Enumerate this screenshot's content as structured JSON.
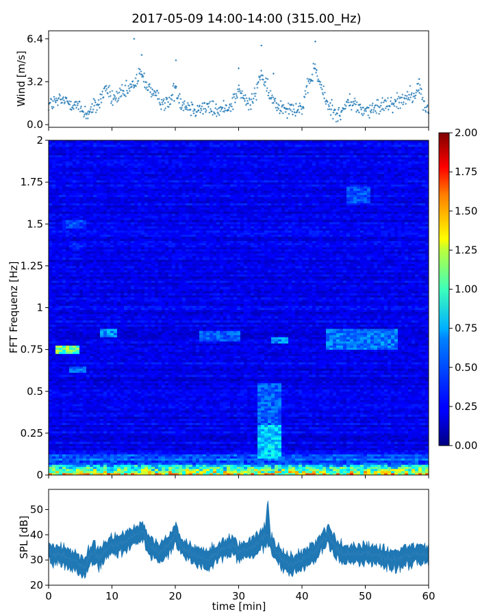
{
  "title": "2017-05-09 14:00-14:00 (315.00_Hz)",
  "chart_data": [
    {
      "type": "scatter",
      "panel": "wind",
      "ylabel": "Wind [m/s]",
      "xlim": [
        0,
        60
      ],
      "ylim": [
        -0.2,
        7.0
      ],
      "yticks": [
        0.0,
        3.2,
        6.4
      ],
      "ytick_labels": [
        "0.0",
        "3.2",
        "6.4"
      ],
      "marker": "+",
      "color": "#1f77b4",
      "profile": [
        [
          0,
          1.5
        ],
        [
          2,
          1.8
        ],
        [
          4,
          1.6
        ],
        [
          6,
          0.8
        ],
        [
          8,
          1.6
        ],
        [
          9,
          2.8
        ],
        [
          10,
          1.9
        ],
        [
          12,
          2.3
        ],
        [
          13.5,
          3.0
        ],
        [
          14.5,
          3.8
        ],
        [
          15.5,
          3.0
        ],
        [
          17,
          2.0
        ],
        [
          19,
          1.5
        ],
        [
          20,
          2.8
        ],
        [
          21,
          1.6
        ],
        [
          23,
          1.2
        ],
        [
          25,
          1.3
        ],
        [
          27,
          1.0
        ],
        [
          29,
          1.6
        ],
        [
          30,
          2.6
        ],
        [
          31,
          1.8
        ],
        [
          32,
          1.5
        ],
        [
          33,
          2.8
        ],
        [
          33.5,
          4.0
        ],
        [
          34.5,
          2.5
        ],
        [
          36,
          1.4
        ],
        [
          38,
          1.3
        ],
        [
          40,
          1.2
        ],
        [
          41,
          2.8
        ],
        [
          42,
          4.3
        ],
        [
          43,
          2.8
        ],
        [
          44,
          1.5
        ],
        [
          46,
          0.7
        ],
        [
          47.5,
          1.8
        ],
        [
          49,
          1.2
        ],
        [
          51,
          1.0
        ],
        [
          53,
          1.6
        ],
        [
          55,
          1.7
        ],
        [
          57,
          2.2
        ],
        [
          58.5,
          2.7
        ],
        [
          59.5,
          1.2
        ],
        [
          60,
          1.1
        ]
      ],
      "spikes": [
        [
          13.5,
          6.4
        ],
        [
          42.1,
          6.2
        ],
        [
          33.6,
          5.9
        ],
        [
          14.7,
          5.2
        ],
        [
          20.1,
          4.8
        ],
        [
          35.5,
          3.8
        ],
        [
          58.5,
          3.4
        ],
        [
          30.0,
          4.2
        ]
      ]
    },
    {
      "type": "heatmap",
      "panel": "spectrogram",
      "ylabel": "FFT Frequenz [Hz]",
      "xlim": [
        0,
        60
      ],
      "ylim": [
        0,
        2
      ],
      "yticks": [
        0,
        0.25,
        0.5,
        0.75,
        1,
        1.25,
        1.5,
        1.75,
        2
      ],
      "ytick_labels": [
        "0",
        "0.25",
        "0.5",
        "0.75",
        "1",
        "1.25",
        "1.5",
        "1.75",
        "2"
      ],
      "colormap": "jet",
      "color_range": [
        0,
        2
      ],
      "background_level": 0.22,
      "low_freq_band": {
        "freq_max": 0.06,
        "level": 1.7
      },
      "features": [
        {
          "t": [
            1,
            5
          ],
          "f": [
            0.73,
            0.78
          ],
          "level": 1.1
        },
        {
          "t": [
            3,
            6
          ],
          "f": [
            0.61,
            0.65
          ],
          "level": 0.55
        },
        {
          "t": [
            8,
            11
          ],
          "f": [
            0.82,
            0.88
          ],
          "level": 0.6
        },
        {
          "t": [
            24,
            30
          ],
          "f": [
            0.8,
            0.86
          ],
          "level": 0.5
        },
        {
          "t": [
            33,
            36.5
          ],
          "f": [
            0.1,
            0.3
          ],
          "level": 0.75
        },
        {
          "t": [
            33,
            36.5
          ],
          "f": [
            0.3,
            0.55
          ],
          "level": 0.5
        },
        {
          "t": [
            35,
            38
          ],
          "f": [
            0.79,
            0.83
          ],
          "level": 0.6
        },
        {
          "t": [
            44,
            55
          ],
          "f": [
            0.75,
            0.87
          ],
          "level": 0.55
        },
        {
          "t": [
            47,
            51
          ],
          "f": [
            1.62,
            1.72
          ],
          "level": 0.45
        },
        {
          "t": [
            2,
            6
          ],
          "f": [
            1.48,
            1.53
          ],
          "level": 0.45
        },
        {
          "t": [
            3,
            6
          ],
          "f": [
            1.35,
            1.4
          ],
          "level": 0.35
        }
      ]
    },
    {
      "type": "area",
      "panel": "spl",
      "ylabel": "SPL [dB]",
      "xlabel": "time [min]",
      "xlim": [
        0,
        60
      ],
      "ylim": [
        20,
        58
      ],
      "xticks": [
        0,
        10,
        20,
        30,
        40,
        50,
        60
      ],
      "xtick_labels": [
        "0",
        "10",
        "20",
        "30",
        "40",
        "50",
        "60"
      ],
      "yticks": [
        20,
        30,
        40,
        50
      ],
      "ytick_labels": [
        "20",
        "30",
        "40",
        "50"
      ],
      "color": "#1f77b4",
      "profile": [
        [
          0,
          33
        ],
        [
          2,
          32
        ],
        [
          4,
          30
        ],
        [
          5.5,
          27
        ],
        [
          7,
          33
        ],
        [
          8,
          31
        ],
        [
          10,
          36
        ],
        [
          12,
          37
        ],
        [
          13.5,
          40
        ],
        [
          15,
          41
        ],
        [
          16,
          35
        ],
        [
          17.5,
          33
        ],
        [
          19,
          36
        ],
        [
          20,
          41
        ],
        [
          21,
          35
        ],
        [
          23,
          32
        ],
        [
          25,
          30
        ],
        [
          27,
          34
        ],
        [
          29,
          36
        ],
        [
          30,
          33
        ],
        [
          32,
          35
        ],
        [
          33.5,
          38
        ],
        [
          34.5,
          40
        ],
        [
          36,
          33
        ],
        [
          38,
          28
        ],
        [
          40,
          30
        ],
        [
          42,
          33
        ],
        [
          44,
          40
        ],
        [
          46,
          33
        ],
        [
          48,
          32
        ],
        [
          50,
          33
        ],
        [
          52,
          32
        ],
        [
          54,
          30
        ],
        [
          56,
          31
        ],
        [
          58,
          33
        ],
        [
          60,
          32
        ]
      ],
      "spike": [
        34.6,
        55
      ]
    },
    {
      "type": "colorbar",
      "panel": "colorbar",
      "range": [
        0,
        2
      ],
      "ticks": [
        0,
        0.25,
        0.5,
        0.75,
        1,
        1.25,
        1.5,
        1.75,
        2
      ],
      "tick_labels": [
        "0.00",
        "0.25",
        "0.50",
        "0.75",
        "1.00",
        "1.25",
        "1.50",
        "1.75",
        "2.00"
      ]
    }
  ]
}
